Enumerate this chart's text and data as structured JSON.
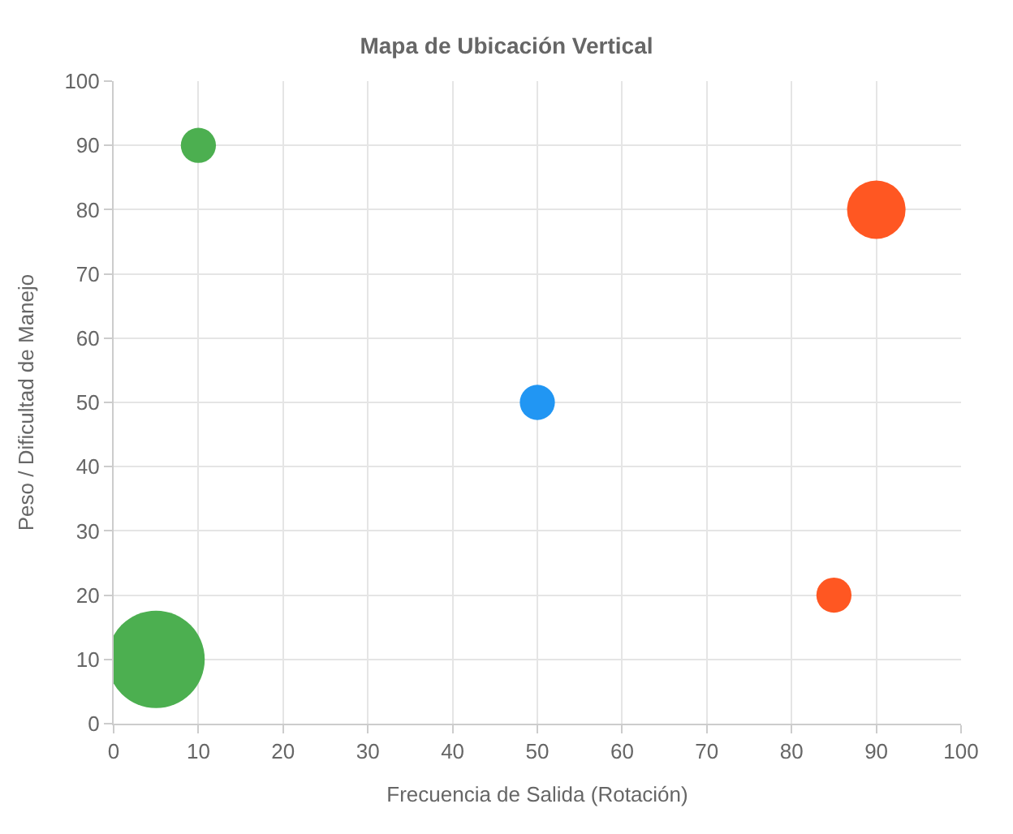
{
  "chart_data": {
    "type": "bubble",
    "title": "Mapa de Ubicación Vertical",
    "xlabel": "Frecuencia de Salida (Rotación)",
    "ylabel": "Peso / Dificultad de Manejo",
    "x": [
      10,
      90,
      50,
      85,
      5
    ],
    "values": [
      90,
      80,
      50,
      20,
      10
    ],
    "sizes": [
      0.13,
      0.36,
      0.13,
      0.13,
      1
    ],
    "colors": [
      "#4caf50",
      "#ff5722",
      "#2196f3",
      "#ff5722",
      "#4caf50"
    ],
    "xlim": [
      0,
      100
    ],
    "xticks": [
      0,
      10,
      20,
      30,
      40,
      50,
      60,
      70,
      80,
      90,
      100
    ],
    "ylim": [
      0,
      100
    ],
    "yticks": [
      0,
      10,
      20,
      30,
      40,
      50,
      60,
      70,
      80,
      90,
      100
    ],
    "grid": true,
    "legend": false
  }
}
